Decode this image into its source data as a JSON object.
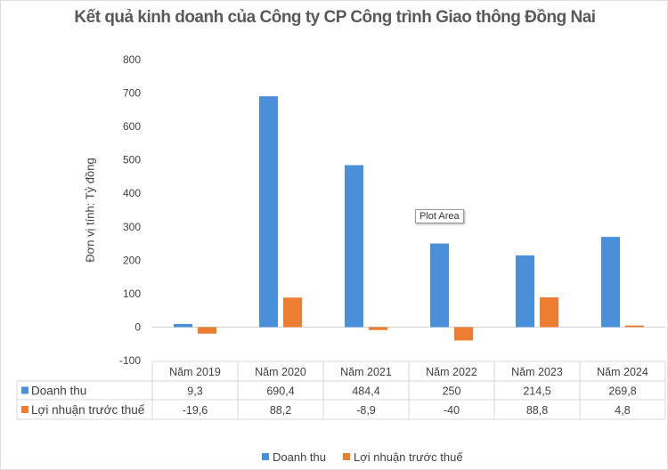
{
  "chart_data": {
    "type": "bar",
    "title": "Kết quả kinh doanh của Công ty CP Công trình Giao thông Đồng Nai",
    "ylabel": "Đơn vị tính: Tỷ đồng",
    "xlabel": "",
    "ylim": [
      -100,
      800
    ],
    "yticks": [
      800,
      700,
      600,
      500,
      400,
      300,
      200,
      100,
      0,
      -100
    ],
    "grid": false,
    "legend": "bottom",
    "categories": [
      "Năm 2019",
      "Năm 2020",
      "Năm 2021",
      "Năm 2022",
      "Năm 2023",
      "Năm 2024"
    ],
    "series": [
      {
        "name": "Doanh thu",
        "values": [
          9.3,
          690.4,
          484.4,
          250,
          214.5,
          269.8
        ],
        "labels": [
          "9,3",
          "690,4",
          "484,4",
          "250",
          "214,5",
          "269,8"
        ],
        "color": "#4a8fd9"
      },
      {
        "name": "Lợi nhuận trước thuế",
        "values": [
          -19.6,
          88.2,
          -8.9,
          -40,
          88.8,
          4.8
        ],
        "labels": [
          "-19,6",
          "88,2",
          "-8,9",
          "-40",
          "88,8",
          "4,8"
        ],
        "color": "#ed7d31"
      }
    ],
    "data_table": true
  },
  "tooltip": "Plot Area"
}
